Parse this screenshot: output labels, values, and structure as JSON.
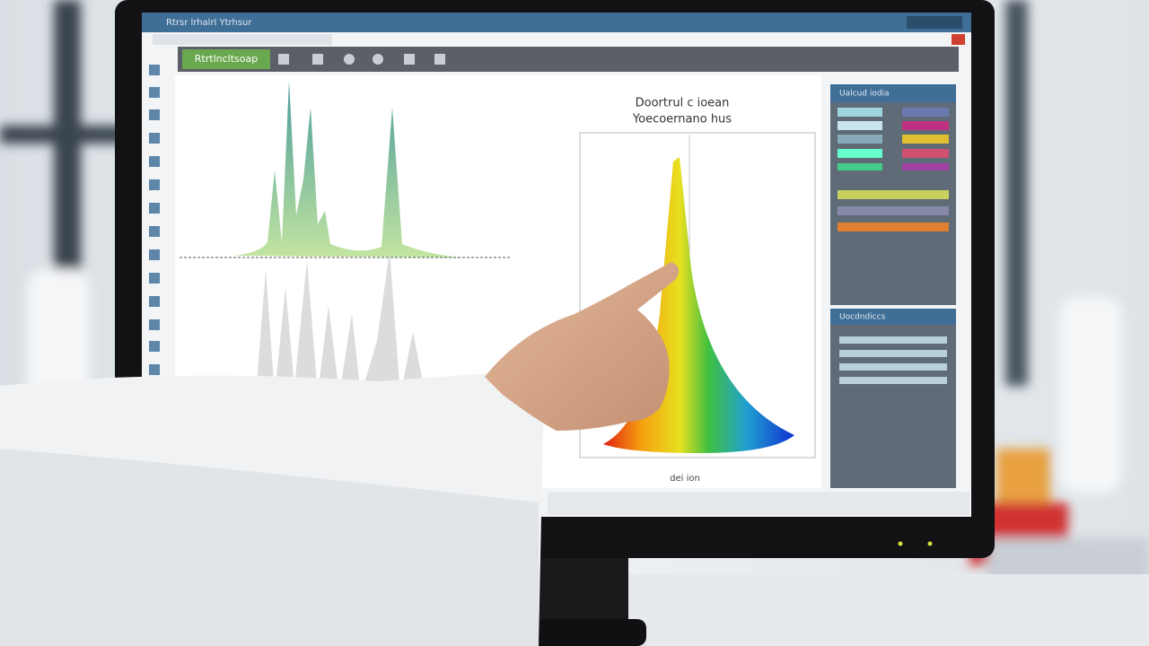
{
  "screen": {
    "window_title": "Rtrsr lrhalrl Ytrhsur",
    "toolbar_tab": "Rtrtlncltsoap",
    "chart": {
      "title": [
        "Doortrul c ioean",
        "Yoecoernano hus"
      ],
      "x_label": "dei ion"
    },
    "panels": [
      {
        "title": "Ualcud iodia"
      },
      {
        "title": "Uocdndiccs"
      }
    ]
  }
}
